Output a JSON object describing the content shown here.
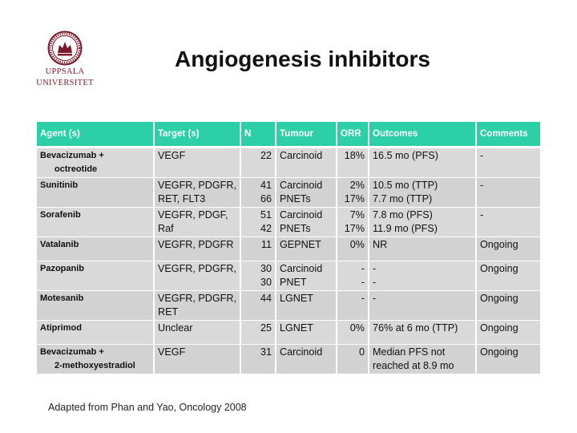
{
  "logo": {
    "line1": "UPPSALA",
    "line2": "UNIVERSITET",
    "color": "#7a1a2c"
  },
  "title": "Angiogenesis inhibitors",
  "table": {
    "header_color": "#2ccfa6",
    "columns": [
      "Agent (s)",
      "Target (s)",
      "N",
      "Tumour",
      "ORR",
      "Outcomes",
      "Comments"
    ],
    "rows": [
      {
        "agent": [
          "Bevacizumab +",
          "octreotide"
        ],
        "target": [
          "VEGF"
        ],
        "n": [
          "22"
        ],
        "tumour": [
          "Carcinoid"
        ],
        "orr": [
          "18%"
        ],
        "outcomes": [
          "16.5 mo (PFS)"
        ],
        "comments": [
          "-"
        ]
      },
      {
        "agent": [
          "Sunitinib"
        ],
        "target": [
          "VEGFR, PDGFR,",
          "RET, FLT3"
        ],
        "n": [
          "41",
          "66"
        ],
        "tumour": [
          "Carcinoid",
          "PNETs"
        ],
        "orr": [
          "2%",
          "17%"
        ],
        "outcomes": [
          "10.5 mo (TTP)",
          "7.7 mo (TTP)"
        ],
        "comments": [
          "-"
        ]
      },
      {
        "agent": [
          "Sorafenib"
        ],
        "target": [
          "VEGFR, PDGF,",
          "Raf"
        ],
        "n": [
          "51",
          "42"
        ],
        "tumour": [
          "Carcinoid",
          "PNETs"
        ],
        "orr": [
          "7%",
          "17%"
        ],
        "outcomes": [
          "7.8 mo (PFS)",
          "11.9 mo (PFS)"
        ],
        "comments": [
          "-"
        ]
      },
      {
        "agent": [
          "Vatalanib"
        ],
        "target": [
          "VEGFR, PDGFR"
        ],
        "n": [
          "11"
        ],
        "tumour": [
          "GEPNET"
        ],
        "orr": [
          "0%"
        ],
        "outcomes": [
          "NR"
        ],
        "comments": [
          "Ongoing"
        ]
      },
      {
        "agent": [
          "Pazopanib"
        ],
        "target": [
          "VEGFR, PDGFR,"
        ],
        "n": [
          "30",
          "30"
        ],
        "tumour": [
          "Carcinoid",
          "PNET"
        ],
        "orr": [
          "-",
          "-"
        ],
        "outcomes": [
          "-",
          "-"
        ],
        "comments": [
          "Ongoing"
        ]
      },
      {
        "agent": [
          "Motesanib"
        ],
        "target": [
          "VEGFR, PDGFR,",
          "RET"
        ],
        "n": [
          "44"
        ],
        "tumour": [
          "LGNET"
        ],
        "orr": [
          "-"
        ],
        "outcomes": [
          "-"
        ],
        "comments": [
          "Ongoing"
        ]
      },
      {
        "agent": [
          "Atiprimod"
        ],
        "target": [
          "Unclear"
        ],
        "n": [
          "25"
        ],
        "tumour": [
          "LGNET"
        ],
        "orr": [
          "0%"
        ],
        "outcomes": [
          "76% at 6 mo (TTP)"
        ],
        "comments": [
          "Ongoing"
        ]
      },
      {
        "agent": [
          "Bevacizumab +",
          "2-methoxyestradiol"
        ],
        "target": [
          "VEGF"
        ],
        "n": [
          "31"
        ],
        "tumour": [
          "Carcinoid"
        ],
        "orr": [
          "0"
        ],
        "outcomes": [
          "Median PFS not",
          "reached at 8.9 mo"
        ],
        "comments": [
          "Ongoing"
        ]
      }
    ]
  },
  "citation": "Adapted from Phan and Yao, Oncology 2008"
}
